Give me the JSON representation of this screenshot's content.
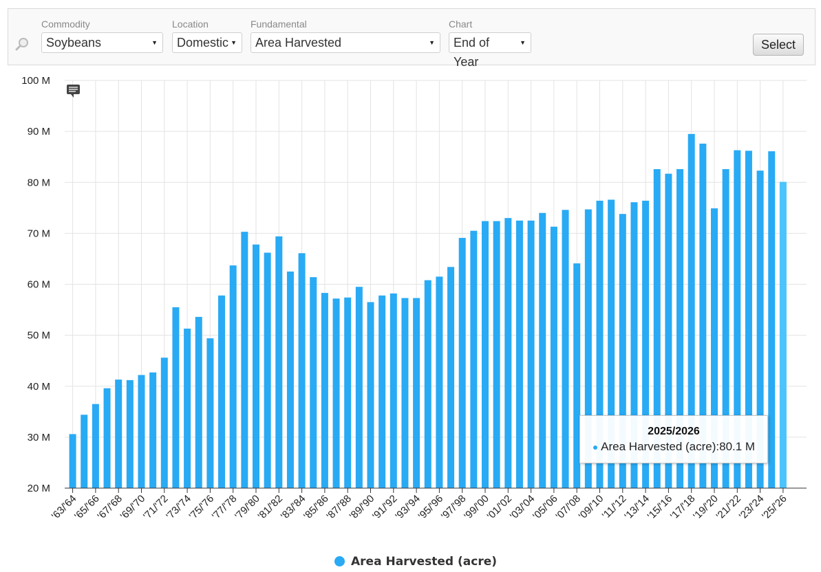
{
  "filters": {
    "commodity": {
      "label": "Commodity",
      "value": "Soybeans"
    },
    "location": {
      "label": "Location",
      "value": "Domestic"
    },
    "fundamental": {
      "label": "Fundamental",
      "value": "Area Harvested"
    },
    "chart": {
      "label": "Chart",
      "value": "End of Year"
    },
    "select_button": "Select"
  },
  "colors": {
    "bar": "#29aaf4",
    "bar_highlight": "#4cc3fc",
    "grid": "#e3e3e3"
  },
  "icons": {
    "search": "magnifier-icon",
    "comment": "comment-icon"
  },
  "tooltip": {
    "title": "2025/2026",
    "series": "Area Harvested (acre)",
    "value": "80.1 M"
  },
  "legend": {
    "label": "Area Harvested (acre)"
  },
  "chart_data": {
    "type": "bar",
    "ylim": [
      20,
      100
    ],
    "yticks": [
      "20 M",
      "30 M",
      "40 M",
      "50 M",
      "60 M",
      "70 M",
      "80 M",
      "90 M",
      "100 M"
    ],
    "y_unit": "M",
    "grid": true,
    "legend_position": "bottom",
    "series": [
      {
        "name": "Area Harvested (acre)",
        "values": [
          30.6,
          34.4,
          36.5,
          39.6,
          41.3,
          41.2,
          42.2,
          42.7,
          45.6,
          55.5,
          51.3,
          53.6,
          49.4,
          57.8,
          63.7,
          70.3,
          67.8,
          66.2,
          69.4,
          62.5,
          66.1,
          61.4,
          58.3,
          57.2,
          57.4,
          59.5,
          56.5,
          57.8,
          58.2,
          57.3,
          57.3,
          60.8,
          61.5,
          63.4,
          69.1,
          70.5,
          72.4,
          72.4,
          73.0,
          72.5,
          72.5,
          74.0,
          71.3,
          74.6,
          64.1,
          74.7,
          76.4,
          76.6,
          73.8,
          76.1,
          76.4,
          82.6,
          81.7,
          82.6,
          89.5,
          87.6,
          74.9,
          82.6,
          86.3,
          86.2,
          82.3,
          86.1,
          80.1
        ]
      }
    ],
    "categories": [
      "1963/1964",
      "1964/1965",
      "1965/1966",
      "1966/1967",
      "1967/1968",
      "1968/1969",
      "1969/1970",
      "1970/1971",
      "1971/1972",
      "1972/1973",
      "1973/1974",
      "1974/1975",
      "1975/1976",
      "1976/1977",
      "1977/1978",
      "1978/1979",
      "1979/1980",
      "1980/1981",
      "1981/1982",
      "1982/1983",
      "1983/1984",
      "1984/1985",
      "1985/1986",
      "1986/1987",
      "1987/1988",
      "1988/1989",
      "1989/1990",
      "1990/1991",
      "1991/1992",
      "1992/1993",
      "1993/1994",
      "1994/1995",
      "1995/1996",
      "1996/1997",
      "1997/1998",
      "1998/1999",
      "1999/2000",
      "2000/2001",
      "2001/2002",
      "2002/2003",
      "2003/2004",
      "2004/2005",
      "2005/2006",
      "2006/2007",
      "2007/2008",
      "2008/2009",
      "2009/2010",
      "2010/2011",
      "2011/2012",
      "2012/2013",
      "2013/2014",
      "2014/2015",
      "2015/2016",
      "2016/2017",
      "2017/2018",
      "2018/2019",
      "2019/2020",
      "2020/2021",
      "2021/2022",
      "2022/2023",
      "2023/2024",
      "2024/2025",
      "2025/2026"
    ],
    "x_tick_labels": [
      "'63/'64",
      "'65/'66",
      "'67/'68",
      "'69/'70",
      "'71/'72",
      "'73/'74",
      "'75/'76",
      "'77/'78",
      "'79/'80",
      "'81/'82",
      "'83/'84",
      "'85/'86",
      "'87/'88",
      "'89/'90",
      "'91/'92",
      "'93/'94",
      "'95/'96",
      "'97/'98",
      "'99/'00",
      "'01/'02",
      "'03/'04",
      "'05/'06",
      "'07/'08",
      "'09/'10",
      "'11/'12",
      "'13/'14",
      "'15/'16",
      "'17/'18",
      "'19/'20",
      "'21/'22",
      "'23/'24",
      "'25/'26"
    ],
    "highlighted_category": "2025/2026"
  }
}
